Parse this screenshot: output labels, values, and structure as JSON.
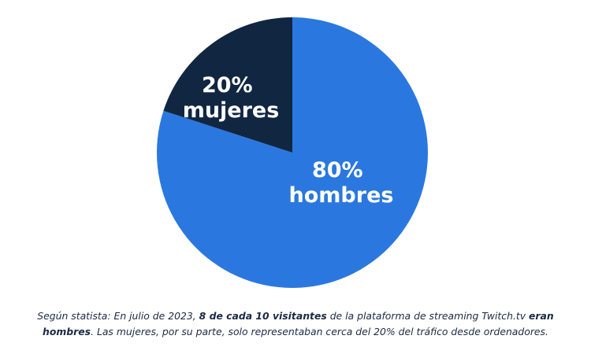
{
  "colors": {
    "hombres": "#2a78df",
    "mujeres": "#112640",
    "caption_text": "#1c2a44"
  },
  "chart_data": {
    "type": "pie",
    "title": "",
    "slices": [
      {
        "label_value": "80%",
        "label_name": "hombres",
        "value": 80,
        "color": "#2a78df"
      },
      {
        "label_value": "20%",
        "label_name": "mujeres",
        "value": 20,
        "color": "#112640"
      }
    ]
  },
  "caption": {
    "part1": "Según statista: En julio de 2023, ",
    "bold1": "8 de cada 10 visitantes",
    "part2": " de la plataforma de streaming Twitch.tv ",
    "bold2": "eran hombres",
    "part3": ". Las mujeres, por su parte, solo representaban cerca del 20% del tráfico desde ordenadores."
  }
}
